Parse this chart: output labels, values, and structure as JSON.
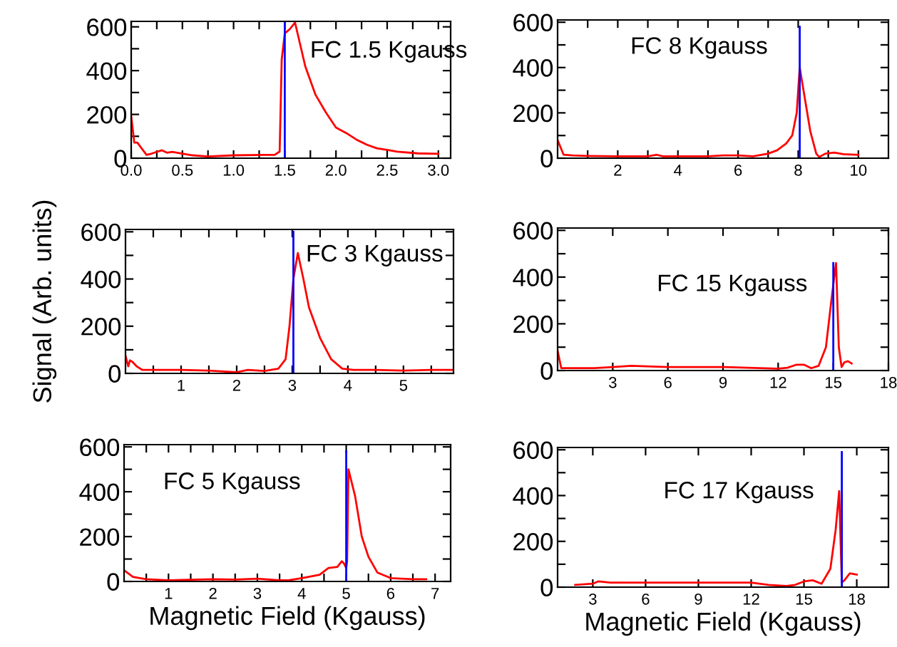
{
  "chart_data": [
    {
      "type": "line",
      "annotations": [
        "FC 1.5 Kgauss"
      ],
      "xlim": [
        0,
        3.12
      ],
      "ylim": [
        0,
        625
      ],
      "xticks": [
        {
          "value": 0,
          "label": "0.0"
        },
        {
          "value": 0.25,
          "label": null
        },
        {
          "value": 0.5,
          "label": "0.5"
        },
        {
          "value": 0.75,
          "label": null
        },
        {
          "value": 1,
          "label": "1.0"
        },
        {
          "value": 1.25,
          "label": null
        },
        {
          "value": 1.5,
          "label": "1.5"
        },
        {
          "value": 1.75,
          "label": null
        },
        {
          "value": 2,
          "label": "2.0"
        },
        {
          "value": 2.25,
          "label": null
        },
        {
          "value": 2.5,
          "label": "2.5"
        },
        {
          "value": 2.75,
          "label": null
        },
        {
          "value": 3,
          "label": "3.0"
        }
      ],
      "yticks": [
        0,
        {
          "value": 100,
          "label": null
        },
        200,
        {
          "value": 300,
          "label": null
        },
        400,
        {
          "value": 500,
          "label": null
        },
        600
      ],
      "series": [
        {
          "color": "#ff0000",
          "x": [
            0,
            0.03,
            0.06,
            0.1,
            0.15,
            0.2,
            0.3,
            0.35,
            0.4,
            0.5,
            0.6,
            0.75,
            1.0,
            1.3,
            1.4,
            1.45,
            1.47,
            1.5,
            1.55,
            1.6,
            1.7,
            1.8,
            1.9,
            2.0,
            2.1,
            2.2,
            2.3,
            2.4,
            2.5,
            2.6,
            2.8,
            3.0
          ],
          "values": [
            192,
            71,
            71,
            46,
            15,
            21,
            36,
            25,
            29,
            21,
            13,
            8,
            13,
            15,
            15,
            30,
            450,
            570,
            590,
            620,
            420,
            290,
            210,
            140,
            115,
            85,
            62,
            45,
            38,
            30,
            22,
            20
          ]
        },
        {
          "color": "#0000ff",
          "x": [
            1.5,
            1.5
          ],
          "values": [
            0,
            625
          ]
        }
      ]
    },
    {
      "type": "line",
      "annotations": [
        "FC 8 Kgauss"
      ],
      "xlim": [
        0,
        11
      ],
      "ylim": [
        0,
        610
      ],
      "xticks": [
        {
          "value": 1,
          "label": null
        },
        2,
        {
          "value": 3,
          "label": null
        },
        4,
        {
          "value": 5,
          "label": null
        },
        6,
        {
          "value": 7,
          "label": null
        },
        8,
        {
          "value": 9,
          "label": null
        },
        10
      ],
      "yticks": [
        0,
        {
          "value": 100,
          "label": null
        },
        200,
        {
          "value": 300,
          "label": null
        },
        400,
        {
          "value": 500,
          "label": null
        },
        600
      ],
      "series": [
        {
          "color": "#ff0000",
          "x": [
            0,
            0.2,
            0.5,
            1,
            2,
            3,
            3.3,
            3.5,
            4,
            5,
            5.5,
            6,
            6.5,
            7,
            7.3,
            7.6,
            7.8,
            7.95,
            8.05,
            8.2,
            8.4,
            8.6,
            8.7,
            8.9,
            9.2,
            9.5,
            10
          ],
          "values": [
            80,
            15,
            12,
            10,
            8,
            8,
            15,
            8,
            8,
            8,
            12,
            12,
            8,
            20,
            35,
            65,
            100,
            200,
            400,
            280,
            120,
            20,
            5,
            20,
            25,
            18,
            15
          ]
        },
        {
          "color": "#0000ff",
          "x": [
            8.05,
            8.05
          ],
          "values": [
            0,
            580
          ]
        }
      ]
    },
    {
      "type": "line",
      "annotations": [
        "FC 3 Kgauss"
      ],
      "ylabel": "Signal (Arb. units)",
      "xlim": [
        0,
        5.9
      ],
      "ylim": [
        0,
        610
      ],
      "xticks": [
        {
          "value": 0.5,
          "label": null
        },
        1,
        {
          "value": 1.5,
          "label": null
        },
        2,
        {
          "value": 2.5,
          "label": null
        },
        3,
        {
          "value": 3.5,
          "label": null
        },
        4,
        {
          "value": 4.5,
          "label": null
        },
        5,
        {
          "value": 5.5,
          "label": null
        }
      ],
      "yticks": [
        0,
        {
          "value": 100,
          "label": null
        },
        200,
        {
          "value": 300,
          "label": null
        },
        400,
        {
          "value": 500,
          "label": null
        },
        600
      ],
      "series": [
        {
          "color": "#ff0000",
          "x": [
            0,
            0.05,
            0.08,
            0.12,
            0.2,
            0.3,
            0.5,
            1,
            1.5,
            2,
            2.2,
            2.5,
            2.75,
            2.88,
            2.95,
            3.02,
            3.1,
            3.2,
            3.3,
            3.5,
            3.7,
            3.9,
            4.1,
            4.5,
            5,
            5.5,
            5.9
          ],
          "values": [
            75,
            30,
            55,
            50,
            30,
            15,
            15,
            15,
            12,
            5,
            15,
            10,
            20,
            60,
            200,
            400,
            510,
            400,
            280,
            150,
            60,
            20,
            15,
            15,
            12,
            15,
            15
          ]
        },
        {
          "color": "#0000ff",
          "x": [
            3.02,
            3.02
          ],
          "values": [
            0,
            600
          ]
        }
      ]
    },
    {
      "type": "line",
      "annotations": [
        "FC 15 Kgauss"
      ],
      "xlim": [
        0,
        18
      ],
      "ylim": [
        0,
        610
      ],
      "xticks": [
        3,
        6,
        9,
        12,
        15,
        18
      ],
      "yticks": [
        0,
        {
          "value": 100,
          "label": null
        },
        200,
        {
          "value": 300,
          "label": null
        },
        400,
        {
          "value": 500,
          "label": null
        },
        600
      ],
      "series": [
        {
          "color": "#ff0000",
          "x": [
            0,
            0.2,
            2,
            3,
            4,
            6,
            9,
            11,
            12,
            12.5,
            13,
            13.4,
            13.8,
            14.2,
            14.6,
            14.85,
            15.05,
            15.15,
            15.3,
            15.45,
            15.6,
            15.8,
            16
          ],
          "values": [
            85,
            10,
            10,
            15,
            20,
            15,
            15,
            10,
            8,
            12,
            25,
            25,
            10,
            20,
            100,
            270,
            400,
            460,
            100,
            15,
            35,
            40,
            30
          ]
        },
        {
          "color": "#0000ff",
          "x": [
            15,
            15
          ],
          "values": [
            0,
            460
          ]
        }
      ]
    },
    {
      "type": "line",
      "annotations": [
        "FC 5 Kgauss"
      ],
      "xlabel": "Magnetic Field (Kgauss)",
      "xlim": [
        0,
        7.35
      ],
      "ylim": [
        0,
        610
      ],
      "xticks": [
        {
          "value": 0.5,
          "label": null
        },
        1,
        {
          "value": 1.5,
          "label": null
        },
        2,
        {
          "value": 2.5,
          "label": null
        },
        3,
        {
          "value": 3.5,
          "label": null
        },
        4,
        {
          "value": 4.5,
          "label": null
        },
        5,
        {
          "value": 5.5,
          "label": null
        },
        6,
        {
          "value": 6.5,
          "label": null
        },
        7
      ],
      "yticks": [
        0,
        {
          "value": 100,
          "label": null
        },
        200,
        {
          "value": 300,
          "label": null
        },
        400,
        {
          "value": 500,
          "label": null
        },
        600
      ],
      "series": [
        {
          "color": "#ff0000",
          "x": [
            0,
            0.2,
            0.5,
            1,
            2,
            2.5,
            3,
            3.5,
            3.7,
            4,
            4.4,
            4.6,
            4.8,
            4.9,
            4.95,
            5.0,
            5.02,
            5.05,
            5.2,
            5.35,
            5.5,
            5.7,
            6,
            6.5,
            6.8
          ],
          "values": [
            50,
            20,
            10,
            5,
            10,
            8,
            12,
            5,
            5,
            15,
            30,
            60,
            65,
            90,
            80,
            60,
            90,
            500,
            380,
            200,
            110,
            40,
            15,
            10,
            10
          ]
        },
        {
          "color": "#0000ff",
          "x": [
            5.0,
            5.0
          ],
          "values": [
            0,
            580
          ]
        }
      ]
    },
    {
      "type": "line",
      "annotations": [
        "FC 17 Kgauss"
      ],
      "xlabel": "Magnetic Field (Kgauss)",
      "xlim": [
        1,
        19.8
      ],
      "ylim": [
        0,
        610
      ],
      "xticks": [
        3,
        6,
        9,
        12,
        15,
        18
      ],
      "yticks": [
        0,
        {
          "value": 100,
          "label": null
        },
        200,
        {
          "value": 300,
          "label": null
        },
        400,
        {
          "value": 500,
          "label": null
        },
        600
      ],
      "series": [
        {
          "color": "#ff0000",
          "x": [
            2,
            3,
            3.3,
            4,
            6,
            9,
            12,
            13,
            14,
            14.5,
            15,
            15.5,
            16,
            16.5,
            16.8,
            17.0,
            17.15,
            17.3,
            17.6,
            18
          ],
          "values": [
            10,
            15,
            25,
            20,
            20,
            20,
            20,
            10,
            5,
            10,
            25,
            30,
            15,
            80,
            250,
            420,
            20,
            30,
            60,
            55
          ]
        },
        {
          "color": "#0000ff",
          "x": [
            17.15,
            17.15
          ],
          "values": [
            0,
            590
          ]
        }
      ]
    }
  ]
}
